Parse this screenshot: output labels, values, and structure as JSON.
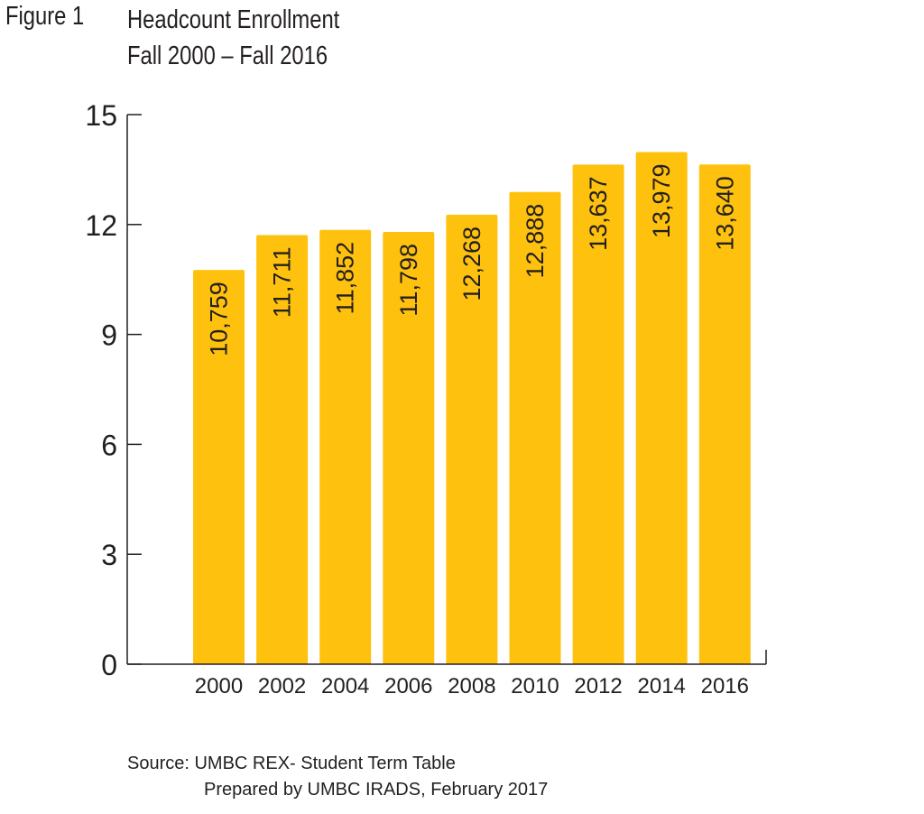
{
  "figure_label": "Figure 1",
  "title_line1": "Headcount Enrollment",
  "title_line2": "Fall 2000 – Fall 2016",
  "source_line1": "Source: UMBC REX- Student Term Table",
  "source_line2": "Prepared by UMBC IRADS, February 2017",
  "colors": {
    "bar": "#fec10e",
    "axis": "#231f20",
    "text": "#231f20"
  },
  "chart_data": {
    "type": "bar",
    "categories": [
      "2000",
      "2002",
      "2004",
      "2006",
      "2008",
      "2010",
      "2012",
      "2014",
      "2016"
    ],
    "values": [
      10.759,
      11.711,
      11.852,
      11.798,
      12.268,
      12.888,
      13.637,
      13.979,
      13.64
    ],
    "data_labels": [
      "10,759",
      "11,711",
      "11,852",
      "11,798",
      "12,268",
      "12,888",
      "13,637",
      "13,979",
      "13,640"
    ],
    "yticks": [
      "0",
      "3",
      "6",
      "9",
      "12",
      "15"
    ],
    "ytick_values": [
      0,
      3,
      6,
      9,
      12,
      15
    ],
    "ylim": [
      0,
      15
    ],
    "grid": false,
    "legend": "none"
  }
}
